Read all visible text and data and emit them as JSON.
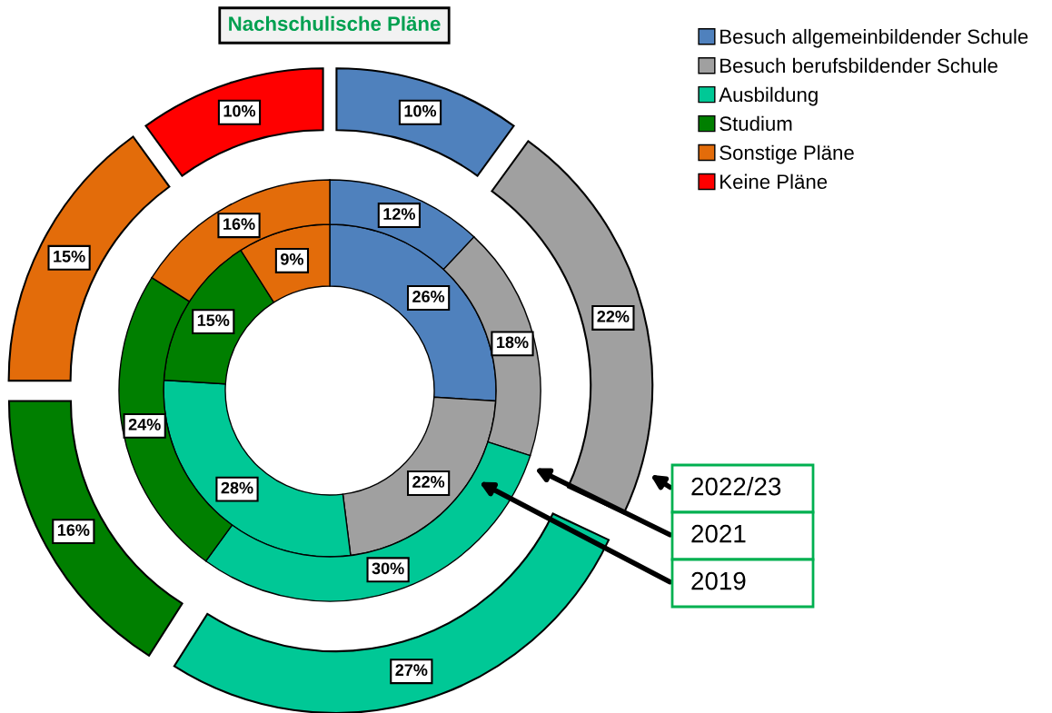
{
  "chart_data": {
    "type": "donut",
    "title": "Nachschulische Pläne",
    "categories": [
      "Besuch allgemeinbildender Schule",
      "Besuch berufsbildender Schule",
      "Ausbildung",
      "Studium",
      "Sonstige Pläne",
      "Keine Pläne"
    ],
    "colors": [
      "#4f81bd",
      "#a0a0a0",
      "#00c896",
      "#007f00",
      "#e36c0a",
      "#ff0000"
    ],
    "series": [
      {
        "name": "2019",
        "values": [
          26,
          22,
          28,
          15,
          9,
          null
        ],
        "value_labels": [
          "26%",
          "22%",
          "28%",
          "15%",
          "9%",
          null
        ]
      },
      {
        "name": "2021",
        "values": [
          12,
          18,
          30,
          24,
          16,
          null
        ],
        "value_labels": [
          "12%",
          "18%",
          "30%",
          "24%",
          "16%",
          null
        ]
      },
      {
        "name": "2022/23",
        "values": [
          10,
          22,
          27,
          16,
          15,
          10
        ],
        "value_labels": [
          "10%",
          "22%",
          "27%",
          "16%",
          "15%",
          "10%"
        ]
      }
    ],
    "legend": "top right"
  }
}
